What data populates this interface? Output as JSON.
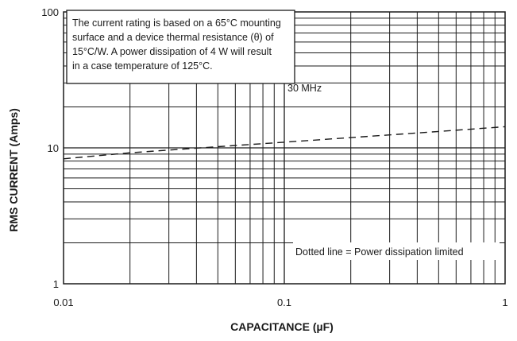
{
  "chart_data": {
    "type": "line",
    "x_scale": "log",
    "y_scale": "log",
    "xlim": [
      0.01,
      1
    ],
    "ylim": [
      1,
      100
    ],
    "xlabel": "CAPACITANCE (µF)",
    "ylabel": "RMS CURRENT (Amps)",
    "x_tick_labels": [
      {
        "value": 0.01,
        "label": "0.01"
      },
      {
        "value": 0.1,
        "label": "0.1"
      },
      {
        "value": 1,
        "label": "1"
      }
    ],
    "y_tick_labels": [
      {
        "value": 1,
        "label": "1"
      },
      {
        "value": 10,
        "label": "10"
      },
      {
        "value": 100,
        "label": "100"
      }
    ],
    "grid": true,
    "series": [
      {
        "name": "30 MHz",
        "style": "dashed",
        "x": [
          0.01,
          0.02,
          0.05,
          0.1,
          0.2,
          0.5,
          1
        ],
        "y": [
          8.3,
          9.2,
          10.2,
          11.0,
          11.9,
          13.2,
          14.3
        ]
      }
    ],
    "annotations": {
      "box_lines": [
        "The current rating is based on a 65°C mounting",
        "surface and a device thermal resistance (θ) of",
        "15°C/W. A power dissipation of 4 W will result",
        "in a case temperature of 125°C."
      ],
      "note": "Dotted line = Power dissipation limited"
    },
    "colors": {
      "line": "#1a1a1a",
      "grid": "#1a1a1a",
      "background": "#ffffff"
    }
  }
}
